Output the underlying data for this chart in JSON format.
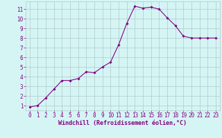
{
  "x": [
    0,
    1,
    2,
    3,
    4,
    5,
    6,
    7,
    8,
    9,
    10,
    11,
    12,
    13,
    14,
    15,
    16,
    17,
    18,
    19,
    20,
    21,
    22,
    23
  ],
  "y": [
    0.85,
    1.0,
    1.8,
    2.7,
    3.6,
    3.6,
    3.8,
    4.5,
    4.4,
    5.0,
    5.5,
    7.3,
    9.5,
    11.3,
    11.1,
    11.2,
    11.0,
    10.1,
    9.3,
    8.2,
    8.0,
    8.0,
    8.0,
    8.0
  ],
  "line_color": "#800080",
  "marker": "D",
  "marker_size": 1.8,
  "bg_color": "#d5f5f5",
  "grid_color": "#b0c8c8",
  "xlabel": "Windchill (Refroidissement éolien,°C)",
  "xlabel_color": "#800080",
  "xlabel_fontsize": 6.0,
  "tick_color": "#800080",
  "tick_fontsize": 5.5,
  "xlim": [
    -0.5,
    23.5
  ],
  "ylim": [
    0.5,
    11.8
  ],
  "yticks": [
    1,
    2,
    3,
    4,
    5,
    6,
    7,
    8,
    9,
    10,
    11
  ],
  "xticks": [
    0,
    1,
    2,
    3,
    4,
    5,
    6,
    7,
    8,
    9,
    10,
    11,
    12,
    13,
    14,
    15,
    16,
    17,
    18,
    19,
    20,
    21,
    22,
    23
  ]
}
